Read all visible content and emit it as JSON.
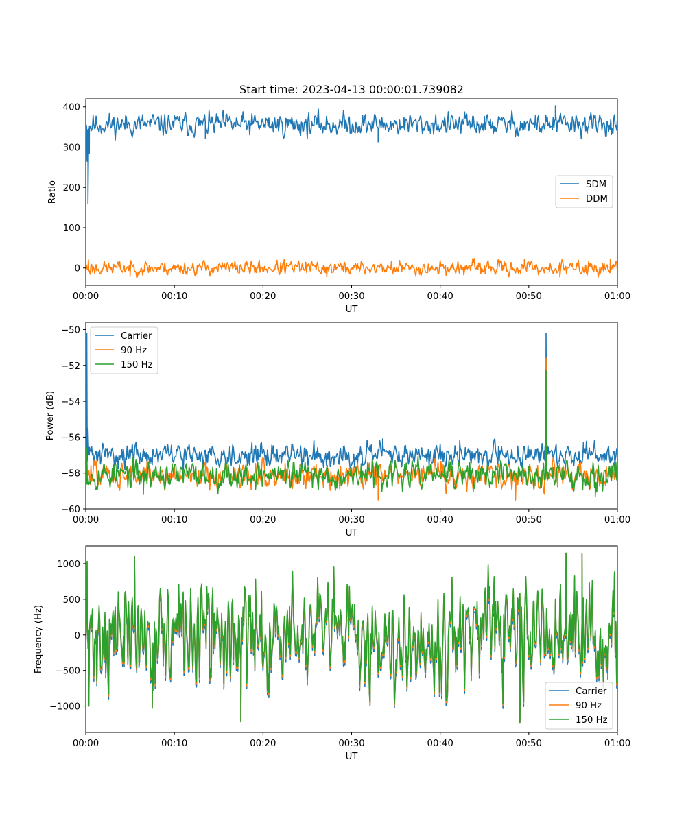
{
  "title": "Start time: 2023-04-13 00:00:01.739082",
  "colors": {
    "blue": "#1f77b4",
    "orange": "#ff7f0e",
    "green": "#2ca02c"
  },
  "chart_data": [
    {
      "type": "line",
      "xlabel": "UT",
      "ylabel": "Ratio",
      "xlim": [
        "00:00",
        "01:00"
      ],
      "xticks": [
        "00:00",
        "00:10",
        "00:20",
        "00:30",
        "00:40",
        "00:50",
        "01:00"
      ],
      "ylim": [
        -43,
        420
      ],
      "yticks": [
        0,
        100,
        200,
        300,
        400
      ],
      "legend": "center-right",
      "grid": false,
      "series": [
        {
          "name": "SDM",
          "color": "#1f77b4",
          "baseline": 356,
          "noise": 13,
          "seed": 11,
          "points": [
            [
              0,
              340
            ],
            [
              0.15,
              265
            ],
            [
              0.25,
              160
            ],
            [
              0.4,
              285
            ],
            [
              0.6,
              340
            ],
            [
              0.9,
              355
            ],
            [
              53.0,
              403
            ],
            [
              33.0,
              313
            ],
            [
              13.5,
              322
            ]
          ]
        },
        {
          "name": "DDM",
          "color": "#ff7f0e",
          "baseline": 0,
          "noise": 8,
          "seed": 23,
          "points": [
            [
              0.3,
              20
            ],
            [
              1.0,
              -14
            ],
            [
              5.0,
              -21
            ],
            [
              22.4,
              22
            ],
            [
              27.2,
              -22
            ],
            [
              49.5,
              22
            ],
            [
              53.5,
              -22
            ],
            [
              59.2,
              22
            ]
          ]
        }
      ]
    },
    {
      "type": "line",
      "xlabel": "UT",
      "ylabel": "Power (dB)",
      "xlim": [
        "00:00",
        "01:00"
      ],
      "xticks": [
        "00:00",
        "00:10",
        "00:20",
        "00:30",
        "00:40",
        "00:50",
        "01:00"
      ],
      "ylim": [
        -60,
        -49.6
      ],
      "yticks": [
        -60,
        -58,
        -56,
        -54,
        -52,
        -50
      ],
      "legend": "upper-left",
      "grid": false,
      "series": [
        {
          "name": "Carrier",
          "color": "#1f77b4",
          "baseline": -57.0,
          "noise": 0.3,
          "seed": 31,
          "points": [
            [
              0.12,
              -50.2
            ],
            [
              0.25,
              -55.5
            ],
            [
              0.4,
              -57.0
            ],
            [
              51.8,
              -57.3
            ],
            [
              51.95,
              -50.2
            ],
            [
              52.15,
              -56.5
            ],
            [
              33.5,
              -56.1
            ],
            [
              42.2,
              -56.2
            ],
            [
              59.7,
              -57.6
            ]
          ]
        },
        {
          "name": "90 Hz",
          "color": "#ff7f0e",
          "baseline": -58.1,
          "noise": 0.35,
          "seed": 47,
          "points": [
            [
              0.12,
              -57.0
            ],
            [
              51.8,
              -58.1
            ],
            [
              51.95,
              -51.6
            ],
            [
              52.15,
              -58.0
            ],
            [
              33.0,
              -59.5
            ],
            [
              48.5,
              -59.5
            ]
          ]
        },
        {
          "name": "150 Hz",
          "color": "#2ca02c",
          "baseline": -58.1,
          "noise": 0.35,
          "seed": 53,
          "points": [
            [
              0.12,
              -56.6
            ],
            [
              51.8,
              -58.2
            ],
            [
              51.95,
              -52.3
            ],
            [
              52.15,
              -58.2
            ],
            [
              6.5,
              -59.2
            ],
            [
              57.5,
              -59.3
            ]
          ]
        }
      ]
    },
    {
      "type": "line",
      "xlabel": "UT",
      "ylabel": "Frequency (Hz)",
      "xlim": [
        "00:00",
        "01:00"
      ],
      "xticks": [
        "00:00",
        "00:10",
        "00:20",
        "00:30",
        "00:40",
        "00:50",
        "01:00"
      ],
      "ylim": [
        -1370,
        1250
      ],
      "yticks": [
        -1000,
        -500,
        0,
        500,
        1000
      ],
      "legend": "lower-right",
      "grid": false,
      "series": [
        {
          "name": "Carrier",
          "color": "#1f77b4",
          "baseline": 0,
          "noise": 330,
          "seed": 71,
          "offset": -70,
          "points": [
            [
              0.15,
              1030
            ],
            [
              0.35,
              -1000
            ],
            [
              5.5,
              1100
            ],
            [
              7.5,
              -1030
            ],
            [
              17.5,
              -1220
            ],
            [
              49.0,
              -1230
            ],
            [
              54.2,
              1150
            ],
            [
              56.0,
              1140
            ]
          ]
        },
        {
          "name": "90 Hz",
          "color": "#ff7f0e",
          "baseline": 0,
          "noise": 330,
          "seed": 71,
          "offset": -30,
          "points": [
            [
              0.15,
              1030
            ],
            [
              0.35,
              -1000
            ],
            [
              5.5,
              1100
            ],
            [
              7.5,
              -1030
            ],
            [
              17.5,
              -1220
            ],
            [
              49.0,
              -1230
            ],
            [
              54.2,
              1150
            ],
            [
              56.0,
              1140
            ]
          ]
        },
        {
          "name": "150 Hz",
          "color": "#2ca02c",
          "baseline": 0,
          "noise": 330,
          "seed": 71,
          "offset": 0,
          "points": [
            [
              0.15,
              1030
            ],
            [
              0.35,
              -1000
            ],
            [
              5.5,
              1100
            ],
            [
              7.5,
              -1030
            ],
            [
              17.5,
              -1220
            ],
            [
              49.0,
              -1230
            ],
            [
              54.2,
              1150
            ],
            [
              56.0,
              1140
            ]
          ]
        }
      ]
    }
  ]
}
